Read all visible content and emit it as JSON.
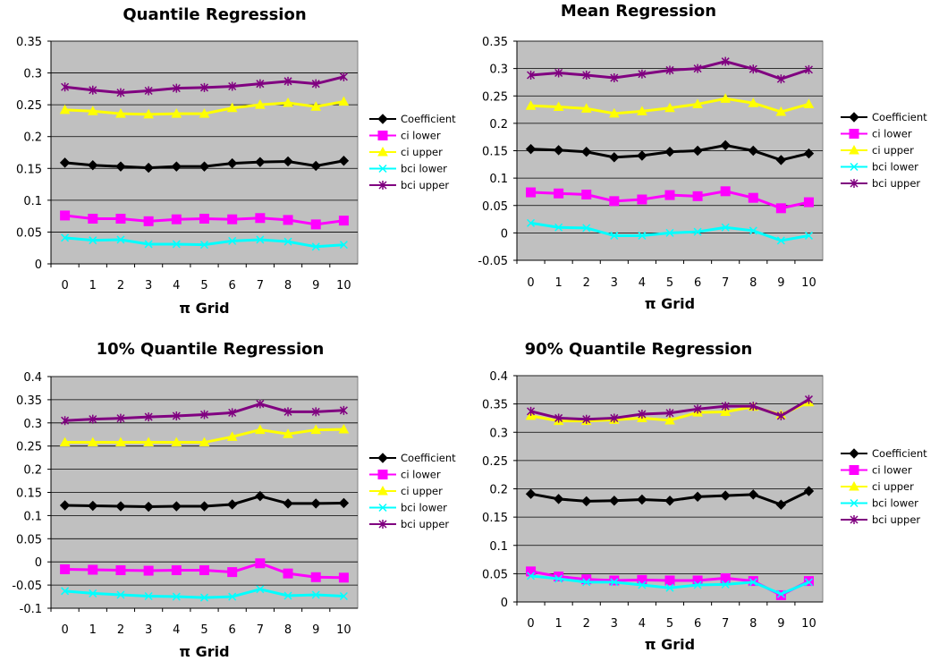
{
  "chart_data": [
    {
      "type": "line",
      "title": "Quantile Regression",
      "xlabel": "π Grid",
      "ylabel": "",
      "categories": [
        "0",
        "1",
        "2",
        "3",
        "4",
        "5",
        "6",
        "7",
        "8",
        "9",
        "10"
      ],
      "ylim": [
        0,
        0.35
      ],
      "yticks": [
        "0",
        "0.05",
        "0.1",
        "0.15",
        "0.2",
        "0.25",
        "0.3",
        "0.35"
      ],
      "grid": true,
      "legend_position": "right",
      "series": [
        {
          "name": "Coefficient",
          "color": "#000000",
          "marker": "diamond",
          "values": [
            0.159,
            0.155,
            0.153,
            0.151,
            0.153,
            0.153,
            0.158,
            0.16,
            0.161,
            0.154,
            0.162
          ]
        },
        {
          "name": "ci lower",
          "color": "#ff00ff",
          "marker": "square",
          "values": [
            0.076,
            0.071,
            0.071,
            0.067,
            0.07,
            0.071,
            0.07,
            0.072,
            0.069,
            0.062,
            0.068
          ]
        },
        {
          "name": "ci upper",
          "color": "#ffff00",
          "marker": "triangle",
          "values": [
            0.242,
            0.24,
            0.236,
            0.235,
            0.236,
            0.236,
            0.245,
            0.25,
            0.253,
            0.247,
            0.255
          ]
        },
        {
          "name": "bci lower",
          "color": "#00ffff",
          "marker": "x",
          "values": [
            0.041,
            0.037,
            0.038,
            0.031,
            0.031,
            0.03,
            0.036,
            0.038,
            0.035,
            0.027,
            0.03
          ]
        },
        {
          "name": "bci upper",
          "color": "#800080",
          "marker": "star",
          "values": [
            0.278,
            0.273,
            0.269,
            0.272,
            0.276,
            0.277,
            0.279,
            0.283,
            0.287,
            0.283,
            0.294
          ]
        }
      ]
    },
    {
      "type": "line",
      "title": "Mean Regression",
      "xlabel": "π Grid",
      "ylabel": "",
      "categories": [
        "0",
        "1",
        "2",
        "3",
        "4",
        "5",
        "6",
        "7",
        "8",
        "9",
        "10"
      ],
      "ylim": [
        -0.05,
        0.35
      ],
      "yticks": [
        "-0.05",
        "0",
        "0.05",
        "0.1",
        "0.15",
        "0.2",
        "0.25",
        "0.3",
        "0.35"
      ],
      "grid": true,
      "legend_position": "right",
      "series": [
        {
          "name": "Coefficient",
          "color": "#000000",
          "marker": "diamond",
          "values": [
            0.153,
            0.151,
            0.148,
            0.138,
            0.141,
            0.148,
            0.15,
            0.16,
            0.15,
            0.133,
            0.145
          ]
        },
        {
          "name": "ci lower",
          "color": "#ff00ff",
          "marker": "square",
          "values": [
            0.074,
            0.072,
            0.07,
            0.058,
            0.061,
            0.069,
            0.067,
            0.076,
            0.064,
            0.045,
            0.056
          ]
        },
        {
          "name": "ci upper",
          "color": "#ffff00",
          "marker": "triangle",
          "values": [
            0.232,
            0.23,
            0.227,
            0.218,
            0.222,
            0.228,
            0.235,
            0.245,
            0.237,
            0.221,
            0.235
          ]
        },
        {
          "name": "bci lower",
          "color": "#00ffff",
          "marker": "x",
          "values": [
            0.018,
            0.01,
            0.009,
            -0.005,
            -0.005,
            0.0,
            0.002,
            0.01,
            0.004,
            -0.014,
            -0.005
          ]
        },
        {
          "name": "bci upper",
          "color": "#800080",
          "marker": "star",
          "values": [
            0.288,
            0.292,
            0.288,
            0.283,
            0.29,
            0.297,
            0.3,
            0.313,
            0.299,
            0.281,
            0.298
          ]
        }
      ]
    },
    {
      "type": "line",
      "title": "10% Quantile Regression",
      "xlabel": "π Grid",
      "ylabel": "",
      "categories": [
        "0",
        "1",
        "2",
        "3",
        "4",
        "5",
        "6",
        "7",
        "8",
        "9",
        "10"
      ],
      "ylim": [
        -0.1,
        0.4
      ],
      "yticks": [
        "-0.1",
        "-0.05",
        "0",
        "0.05",
        "0.1",
        "0.15",
        "0.2",
        "0.25",
        "0.3",
        "0.35",
        "0.4"
      ],
      "grid": true,
      "legend_position": "right",
      "series": [
        {
          "name": "Coefficient",
          "color": "#000000",
          "marker": "diamond",
          "values": [
            0.122,
            0.121,
            0.12,
            0.119,
            0.12,
            0.12,
            0.124,
            0.142,
            0.126,
            0.126,
            0.127
          ]
        },
        {
          "name": "ci lower",
          "color": "#ff00ff",
          "marker": "square",
          "values": [
            -0.016,
            -0.017,
            -0.018,
            -0.019,
            -0.018,
            -0.018,
            -0.022,
            -0.003,
            -0.025,
            -0.033,
            -0.034
          ]
        },
        {
          "name": "ci upper",
          "color": "#ffff00",
          "marker": "triangle",
          "values": [
            0.258,
            0.258,
            0.258,
            0.258,
            0.258,
            0.258,
            0.27,
            0.285,
            0.276,
            0.285,
            0.286
          ]
        },
        {
          "name": "bci lower",
          "color": "#00ffff",
          "marker": "x",
          "values": [
            -0.063,
            -0.068,
            -0.071,
            -0.074,
            -0.075,
            -0.077,
            -0.075,
            -0.059,
            -0.073,
            -0.071,
            -0.074
          ]
        },
        {
          "name": "bci upper",
          "color": "#800080",
          "marker": "star",
          "values": [
            0.305,
            0.308,
            0.31,
            0.313,
            0.315,
            0.318,
            0.322,
            0.341,
            0.324,
            0.324,
            0.327
          ]
        }
      ]
    },
    {
      "type": "line",
      "title": "90% Quantile Regression",
      "xlabel": "π Grid",
      "ylabel": "",
      "categories": [
        "0",
        "1",
        "2",
        "3",
        "4",
        "5",
        "6",
        "7",
        "8",
        "9",
        "10"
      ],
      "ylim": [
        0,
        0.4
      ],
      "yticks": [
        "0",
        "0.05",
        "0.1",
        "0.15",
        "0.2",
        "0.25",
        "0.3",
        "0.35",
        "0.4"
      ],
      "grid": true,
      "legend_position": "right",
      "series": [
        {
          "name": "Coefficient",
          "color": "#000000",
          "marker": "diamond",
          "values": [
            0.191,
            0.182,
            0.178,
            0.179,
            0.181,
            0.179,
            0.186,
            0.188,
            0.19,
            0.172,
            0.196
          ]
        },
        {
          "name": "ci lower",
          "color": "#ff00ff",
          "marker": "square",
          "values": [
            0.054,
            0.045,
            0.04,
            0.038,
            0.039,
            0.038,
            0.038,
            0.042,
            0.037,
            0.012,
            0.037
          ]
        },
        {
          "name": "ci upper",
          "color": "#ffff00",
          "marker": "triangle",
          "values": [
            0.329,
            0.32,
            0.32,
            0.322,
            0.325,
            0.321,
            0.335,
            0.336,
            0.345,
            0.331,
            0.353
          ]
        },
        {
          "name": "bci lower",
          "color": "#00ffff",
          "marker": "x",
          "values": [
            0.046,
            0.041,
            0.035,
            0.035,
            0.03,
            0.025,
            0.03,
            0.031,
            0.035,
            0.014,
            0.035
          ]
        },
        {
          "name": "bci upper",
          "color": "#800080",
          "marker": "star",
          "values": [
            0.337,
            0.325,
            0.323,
            0.325,
            0.332,
            0.334,
            0.341,
            0.346,
            0.346,
            0.329,
            0.358
          ]
        }
      ]
    }
  ]
}
